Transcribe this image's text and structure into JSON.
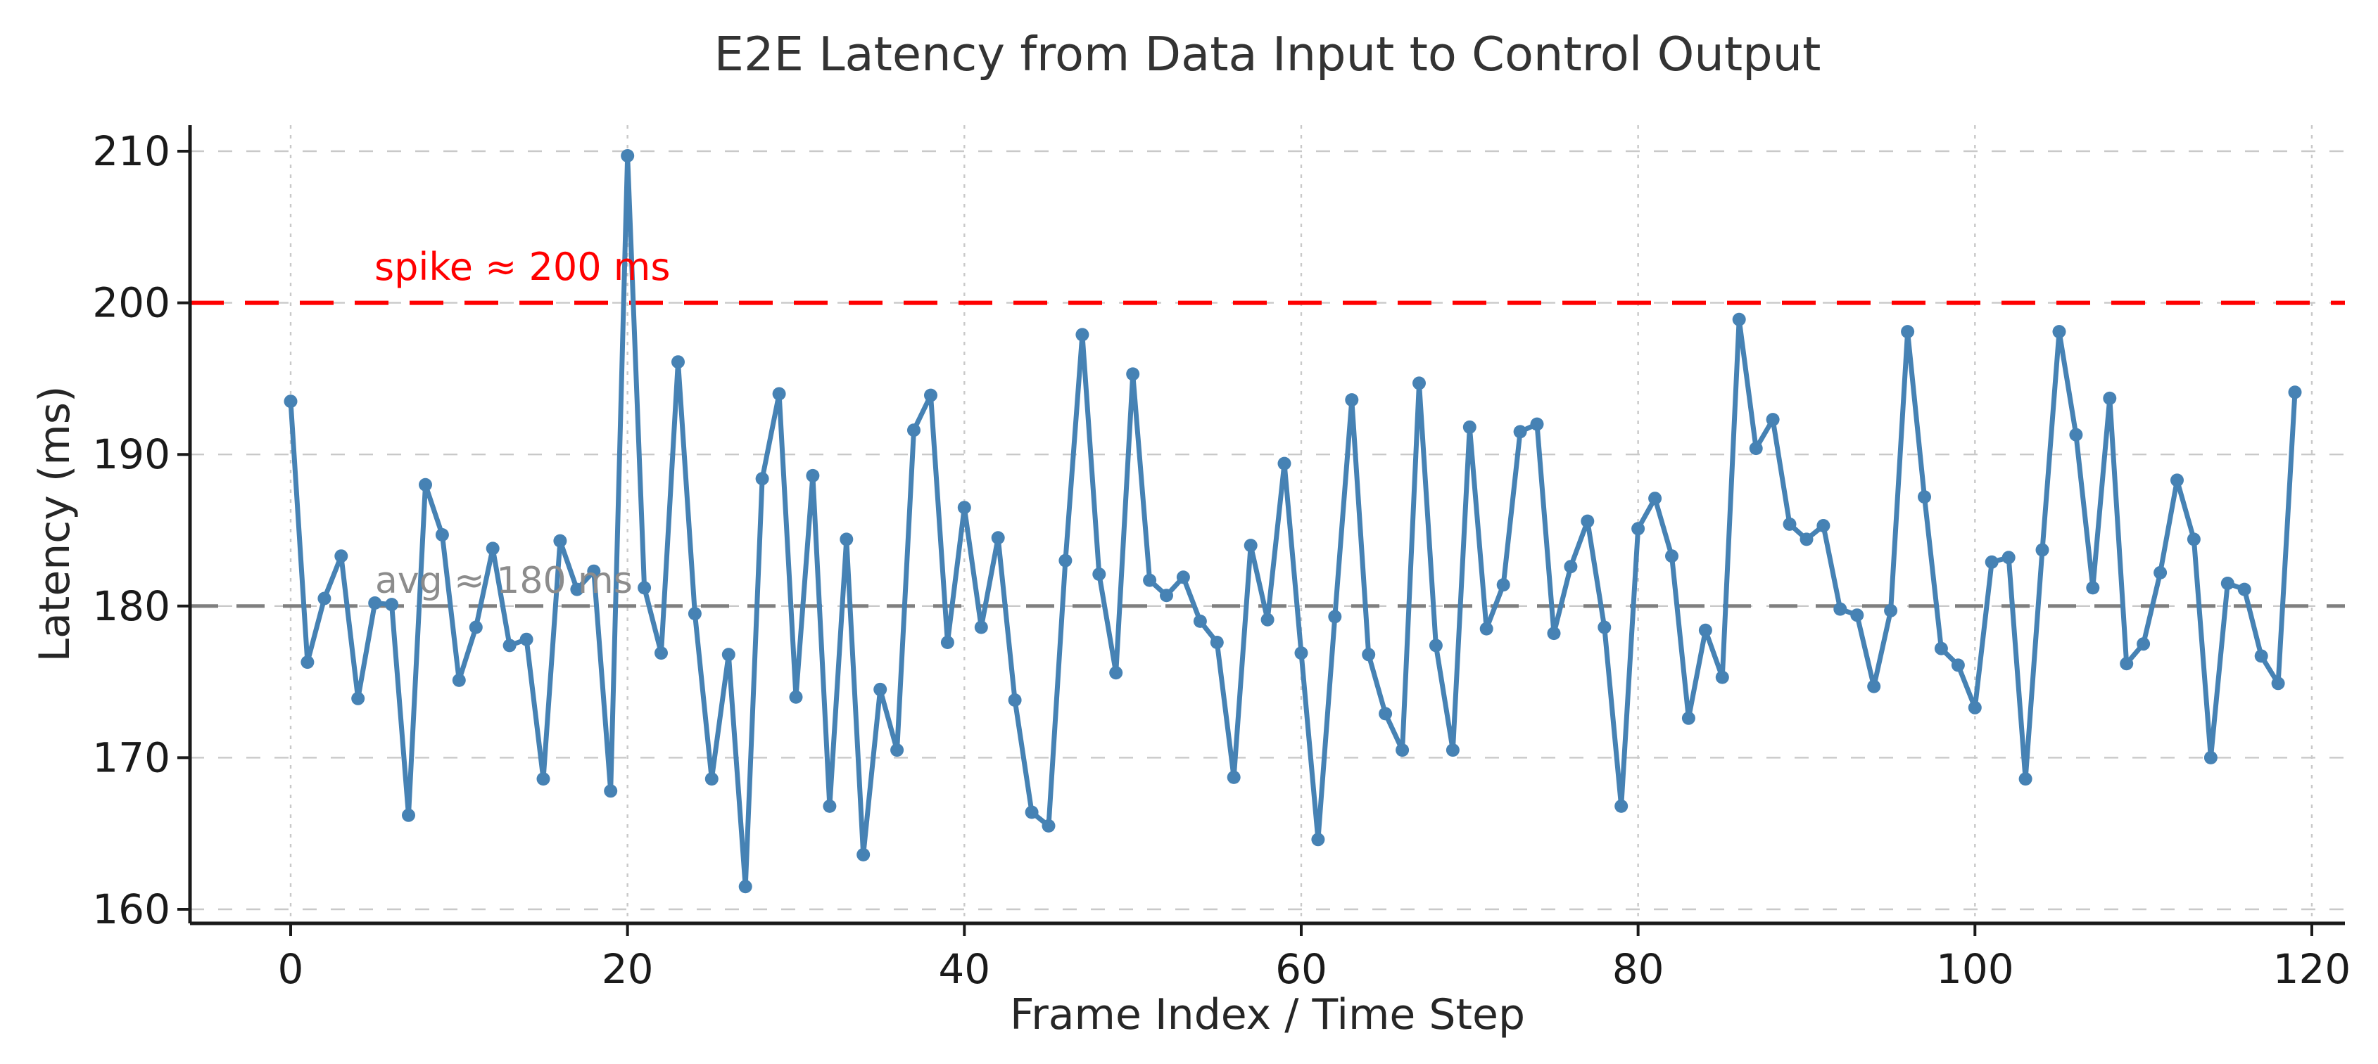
{
  "page": {
    "background": "#ffffff"
  },
  "chart_data": {
    "type": "line",
    "title": "E2E Latency from Data Input to Control Output",
    "xlabel": "Frame Index / Time Step",
    "ylabel": "Latency (ms)",
    "x_ticks": [
      0,
      20,
      40,
      60,
      80,
      100,
      120
    ],
    "y_ticks": [
      160,
      170,
      180,
      190,
      200,
      210
    ],
    "xlim": [
      -6,
      122
    ],
    "ylim": [
      159.1,
      211.7
    ],
    "grid": true,
    "legend_position": "none",
    "series": [
      {
        "name": "e2e-latency",
        "color": "#4682B4",
        "marker": "circle",
        "values": [
          193.5,
          176.3,
          180.5,
          183.3,
          173.9,
          180.2,
          180.1,
          166.2,
          188.0,
          184.7,
          175.1,
          178.6,
          183.8,
          177.4,
          177.8,
          168.6,
          184.3,
          181.1,
          182.3,
          167.8,
          209.7,
          181.2,
          176.9,
          196.1,
          179.5,
          168.6,
          176.8,
          161.5,
          188.4,
          194.0,
          174.0,
          188.6,
          166.8,
          184.4,
          163.6,
          174.5,
          170.5,
          191.6,
          193.9,
          177.6,
          186.5,
          178.6,
          184.5,
          173.8,
          166.4,
          165.5,
          183.0,
          197.9,
          182.1,
          175.6,
          195.3,
          181.7,
          180.7,
          181.9,
          179.0,
          177.6,
          168.7,
          184.0,
          179.1,
          189.4,
          176.9,
          164.6,
          179.3,
          193.6,
          176.8,
          172.9,
          170.5,
          194.7,
          177.4,
          170.5,
          191.8,
          178.5,
          181.4,
          191.5,
          192.0,
          178.2,
          182.6,
          185.6,
          178.6,
          166.8,
          185.1,
          187.1,
          183.3,
          172.6,
          178.4,
          175.3,
          198.9,
          190.4,
          192.3,
          185.4,
          184.4,
          185.3,
          179.8,
          179.4,
          174.7,
          179.7,
          198.1,
          187.2,
          177.2,
          176.1,
          173.3,
          182.9,
          183.2,
          168.6,
          183.7,
          198.1,
          191.3,
          181.2,
          193.7,
          176.2,
          177.5,
          182.2,
          188.3,
          184.4,
          170.0,
          181.5,
          181.1,
          176.7,
          174.9,
          194.1
        ]
      }
    ],
    "reference_lines": [
      {
        "name": "spike-threshold",
        "value": 200,
        "color": "#FF0000",
        "style": "dashed"
      },
      {
        "name": "average",
        "value": 180,
        "color": "#7F7F7F",
        "style": "dashed"
      }
    ],
    "annotations": [
      {
        "text": "spike ≈ 200 ms",
        "color": "#FF0000",
        "near_value": 203
      },
      {
        "text": "avg ≈ 180 ms",
        "color": "#8C8C8C",
        "near_value": 182
      }
    ]
  },
  "axis_style": {
    "tick_label_color": "#1a1a1a",
    "spine_color": "#1a1a1a",
    "grid_color": "#c9c9c9"
  }
}
